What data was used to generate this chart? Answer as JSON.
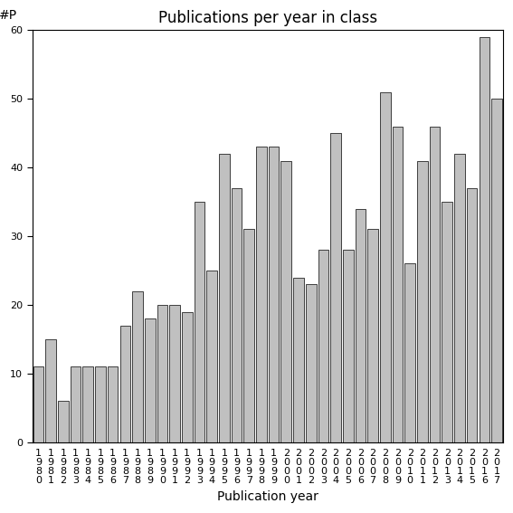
{
  "title": "Publications per year in class",
  "xlabel": "Publication year",
  "ylabel_text": "#P",
  "years": [
    1980,
    1981,
    1982,
    1983,
    1984,
    1985,
    1986,
    1987,
    1988,
    1989,
    1990,
    1991,
    1992,
    1993,
    1994,
    1995,
    1996,
    1997,
    1998,
    1999,
    2000,
    2001,
    2002,
    2003,
    2004,
    2005,
    2006,
    2007,
    2008,
    2009,
    2010,
    2011,
    2012,
    2013,
    2014,
    2015,
    2016,
    2017
  ],
  "values": [
    11,
    15,
    6,
    11,
    11,
    11,
    11,
    17,
    22,
    18,
    20,
    20,
    19,
    35,
    25,
    42,
    37,
    31,
    43,
    43,
    41,
    24,
    23,
    28,
    45,
    28,
    34,
    31,
    51,
    46,
    26,
    41,
    46,
    35,
    42,
    37,
    59,
    50
  ],
  "bar_color": "#c0c0c0",
  "bar_edgecolor": "#000000",
  "ylim": [
    0,
    60
  ],
  "yticks": [
    0,
    10,
    20,
    30,
    40,
    50,
    60
  ],
  "bg_color": "#ffffff",
  "title_fontsize": 12,
  "axis_label_fontsize": 10,
  "tick_fontsize": 8
}
